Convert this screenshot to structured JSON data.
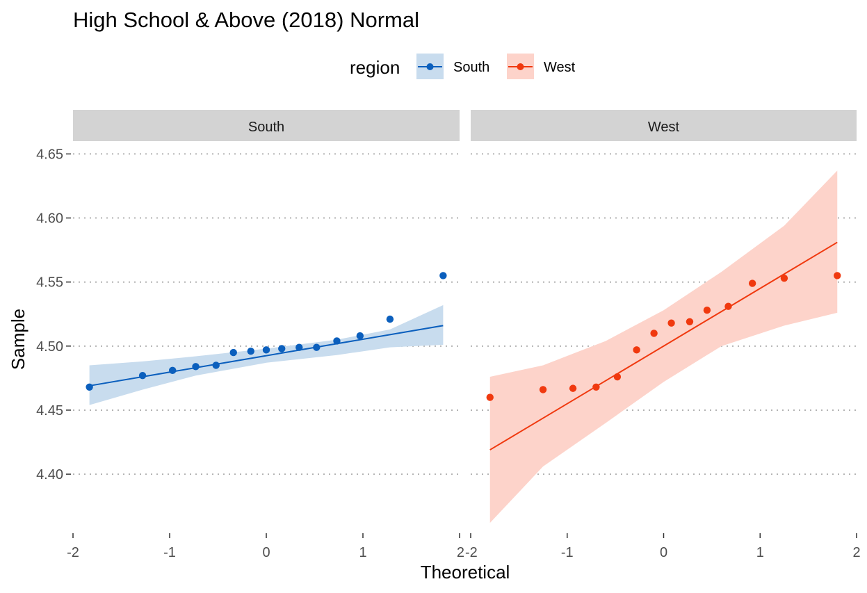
{
  "chart_data": {
    "type": "scatter",
    "title": "High School & Above (2018) Normal",
    "xlabel": "Theoretical",
    "ylabel": "Sample",
    "legend": {
      "title": "region",
      "position": "top"
    },
    "grid": {
      "major_y": true,
      "style": "dotted",
      "major_x": false
    },
    "xlim": [
      -2,
      2
    ],
    "ylim": [
      4.355,
      4.66
    ],
    "x_ticks": [
      "-2",
      "-1",
      "0",
      "1",
      "2"
    ],
    "y_ticks": [
      "4.40",
      "4.45",
      "4.50",
      "4.55",
      "4.60",
      "4.65"
    ],
    "y_tick_values": [
      4.4,
      4.45,
      4.5,
      4.55,
      4.6,
      4.65
    ],
    "facets": [
      {
        "label": "South",
        "color": "#0b5fbd",
        "band_color": "#c8dcee",
        "points": [
          [
            -1.83,
            4.468
          ],
          [
            -1.28,
            4.477
          ],
          [
            -0.97,
            4.481
          ],
          [
            -0.73,
            4.484
          ],
          [
            -0.52,
            4.485
          ],
          [
            -0.34,
            4.495
          ],
          [
            -0.16,
            4.496
          ],
          [
            0.0,
            4.497
          ],
          [
            0.16,
            4.498
          ],
          [
            0.34,
            4.499
          ],
          [
            0.52,
            4.499
          ],
          [
            0.73,
            4.504
          ],
          [
            0.97,
            4.508
          ],
          [
            1.28,
            4.521
          ],
          [
            1.83,
            4.555
          ]
        ],
        "line": [
          [
            -1.83,
            4.469
          ],
          [
            1.83,
            4.516
          ]
        ],
        "band_upper": [
          [
            -1.83,
            4.485
          ],
          [
            -1.28,
            4.488
          ],
          [
            -0.73,
            4.492
          ],
          [
            0.0,
            4.498
          ],
          [
            0.73,
            4.505
          ],
          [
            1.28,
            4.513
          ],
          [
            1.83,
            4.532
          ]
        ],
        "band_lower": [
          [
            -1.83,
            4.454
          ],
          [
            -1.28,
            4.466
          ],
          [
            -0.73,
            4.477
          ],
          [
            0.0,
            4.487
          ],
          [
            0.73,
            4.493
          ],
          [
            1.28,
            4.499
          ],
          [
            1.83,
            4.501
          ]
        ]
      },
      {
        "label": "West",
        "color": "#f0390f",
        "band_color": "#fdd3ca",
        "points": [
          [
            -1.8,
            4.46
          ],
          [
            -1.25,
            4.466
          ],
          [
            -0.94,
            4.467
          ],
          [
            -0.7,
            4.468
          ],
          [
            -0.48,
            4.476
          ],
          [
            -0.28,
            4.497
          ],
          [
            -0.1,
            4.51
          ],
          [
            0.08,
            4.518
          ],
          [
            0.27,
            4.519
          ],
          [
            0.45,
            4.528
          ],
          [
            0.67,
            4.531
          ],
          [
            0.92,
            4.549
          ],
          [
            1.25,
            4.553
          ],
          [
            1.8,
            4.555
          ]
        ],
        "line": [
          [
            -1.8,
            4.419
          ],
          [
            1.8,
            4.581
          ]
        ],
        "band_upper": [
          [
            -1.8,
            4.476
          ],
          [
            -1.25,
            4.485
          ],
          [
            -0.6,
            4.504
          ],
          [
            0.0,
            4.528
          ],
          [
            0.6,
            4.558
          ],
          [
            1.25,
            4.594
          ],
          [
            1.8,
            4.637
          ]
        ],
        "band_lower": [
          [
            -1.8,
            4.362
          ],
          [
            -1.25,
            4.406
          ],
          [
            -0.6,
            4.44
          ],
          [
            0.0,
            4.472
          ],
          [
            0.6,
            4.5
          ],
          [
            1.25,
            4.516
          ],
          [
            1.8,
            4.526
          ]
        ]
      }
    ]
  }
}
